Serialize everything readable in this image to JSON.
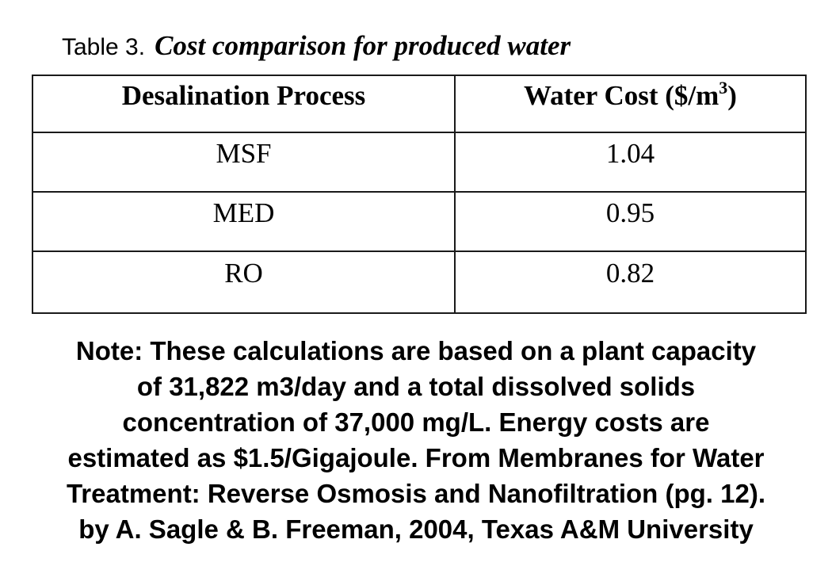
{
  "caption": {
    "label": "Table 3.",
    "title": "Cost comparison for produced water"
  },
  "table": {
    "headers": {
      "process": "Desalination Process",
      "cost_prefix": "Water Cost ($/m",
      "cost_exponent": "3",
      "cost_suffix": ")"
    },
    "rows": [
      {
        "process": "MSF",
        "cost": "1.04"
      },
      {
        "process": "MED",
        "cost": "0.95"
      },
      {
        "process": "RO",
        "cost": "0.82"
      }
    ]
  },
  "note": {
    "lines": [
      "Note: These calculations are based on a plant capacity",
      "of 31,822 m3/day and a total dissolved solids",
      "concentration of 37,000 mg/L. Energy costs are",
      "estimated as $1.5/Gigajoule. From Membranes for Water",
      "Treatment: Reverse Osmosis and Nanofiltration (pg. 12).",
      "by A. Sagle & B. Freeman, 2004, Texas A&M University"
    ]
  }
}
